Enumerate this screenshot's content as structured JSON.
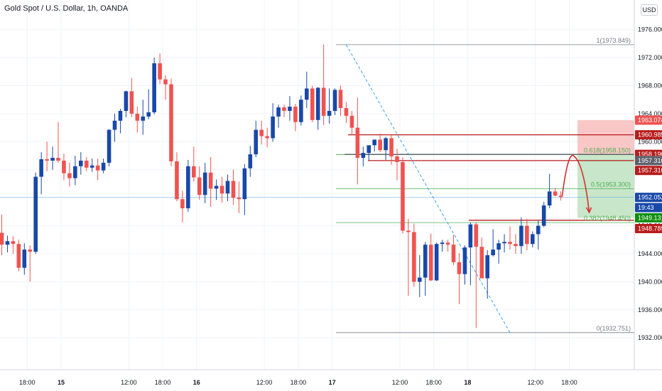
{
  "header": {
    "title": "Gold Spot / U.S. Dollar, 1h, OANDA",
    "currency": "USD"
  },
  "colors": {
    "up": "#1848a8",
    "down": "#ef5350",
    "fib_line": "#4caf50",
    "resistance": "#b71c1c",
    "grid": "#f0f3fa",
    "price_line": "#2196f3"
  },
  "chart_data": {
    "type": "candlestick",
    "ylim": [
      1930.5,
      1978
    ],
    "y_ticks": [
      "1976.000",
      "1972.000",
      "1968.000",
      "1964.000",
      "1960.000",
      "1956.000",
      "1952.000",
      "1948.000",
      "1944.000",
      "1940.000",
      "1936.000",
      "1932.000"
    ],
    "y_tick_values": [
      1976,
      1972,
      1968,
      1964,
      1960,
      1956,
      1952,
      1948,
      1944,
      1940,
      1936,
      1932
    ],
    "x_ticks": [
      {
        "label": "18:00",
        "bar": 4.5
      },
      {
        "label": "15",
        "bar": 10.5
      },
      {
        "label": "12:00",
        "bar": 22.5
      },
      {
        "label": "18:00",
        "bar": 28.5
      },
      {
        "label": "16",
        "bar": 34.5
      },
      {
        "label": "12:00",
        "bar": 46.5
      },
      {
        "label": "18:00",
        "bar": 52.5
      },
      {
        "label": "17",
        "bar": 58.5
      },
      {
        "label": "12:00",
        "bar": 70.5
      },
      {
        "label": "18:00",
        "bar": 76.5
      },
      {
        "label": "18",
        "bar": 82.5
      },
      {
        "label": "12:00",
        "bar": 94.5
      },
      {
        "label": "18:00",
        "bar": 100.5
      }
    ],
    "candles": [
      [
        1947.0,
        1949.6,
        1943.8,
        1945.3
      ],
      [
        1945.3,
        1946.6,
        1944.2,
        1945.8
      ],
      [
        1945.8,
        1946.5,
        1944.0,
        1945.4
      ],
      [
        1945.4,
        1946.0,
        1941.5,
        1942.0
      ],
      [
        1942.0,
        1945.5,
        1941.0,
        1944.6
      ],
      [
        1944.6,
        1945.2,
        1940.0,
        1944.3
      ],
      [
        1944.3,
        1955.6,
        1944.0,
        1955.0
      ],
      [
        1955.0,
        1958.5,
        1952.5,
        1957.5
      ],
      [
        1957.5,
        1960.0,
        1955.8,
        1957.3
      ],
      [
        1957.3,
        1959.3,
        1956.0,
        1957.7
      ],
      [
        1957.7,
        1962.8,
        1957.0,
        1957.3
      ],
      [
        1957.3,
        1958.3,
        1954.5,
        1955.5
      ],
      [
        1955.5,
        1957.0,
        1953.6,
        1954.8
      ],
      [
        1954.8,
        1958.0,
        1953.8,
        1956.5
      ],
      [
        1956.5,
        1958.5,
        1955.3,
        1957.3
      ],
      [
        1957.3,
        1957.8,
        1955.8,
        1956.3
      ],
      [
        1956.3,
        1957.6,
        1955.7,
        1956.6
      ],
      [
        1956.6,
        1957.6,
        1954.5,
        1955.9
      ],
      [
        1955.9,
        1957.6,
        1955.5,
        1957.0
      ],
      [
        1957.0,
        1961.8,
        1956.5,
        1961.7
      ],
      [
        1961.7,
        1964.0,
        1960.0,
        1963.0
      ],
      [
        1963.0,
        1964.7,
        1961.2,
        1964.4
      ],
      [
        1964.4,
        1967.3,
        1963.5,
        1967.2
      ],
      [
        1967.2,
        1969.1,
        1963.5,
        1964.0
      ],
      [
        1964.0,
        1965.0,
        1961.3,
        1963.0
      ],
      [
        1963.0,
        1966.0,
        1961.0,
        1963.6
      ],
      [
        1963.6,
        1967.5,
        1963.2,
        1964.2
      ],
      [
        1964.2,
        1972.0,
        1963.9,
        1971.2
      ],
      [
        1971.2,
        1972.6,
        1968.2,
        1968.9
      ],
      [
        1968.9,
        1969.5,
        1966.0,
        1968.2
      ],
      [
        1968.2,
        1969.0,
        1956.5,
        1957.2
      ],
      [
        1957.2,
        1958.5,
        1951.5,
        1951.8
      ],
      [
        1951.8,
        1953.0,
        1948.5,
        1950.5
      ],
      [
        1950.5,
        1957.4,
        1950.0,
        1956.5
      ],
      [
        1956.5,
        1959.3,
        1954.3,
        1954.9
      ],
      [
        1954.9,
        1956.5,
        1951.7,
        1952.4
      ],
      [
        1952.4,
        1957.0,
        1951.2,
        1955.6
      ],
      [
        1955.6,
        1957.8,
        1950.7,
        1953.3
      ],
      [
        1953.3,
        1954.6,
        1951.7,
        1953.7
      ],
      [
        1953.7,
        1955.0,
        1951.3,
        1952.6
      ],
      [
        1952.6,
        1955.3,
        1951.5,
        1954.4
      ],
      [
        1954.4,
        1956.0,
        1951.0,
        1952.0
      ],
      [
        1952.0,
        1954.3,
        1949.8,
        1951.8
      ],
      [
        1951.8,
        1956.8,
        1949.5,
        1956.2
      ],
      [
        1956.2,
        1959.4,
        1955.0,
        1958.2
      ],
      [
        1958.2,
        1963.0,
        1957.8,
        1961.7
      ],
      [
        1961.7,
        1963.0,
        1959.6,
        1960.8
      ],
      [
        1960.8,
        1962.0,
        1959.2,
        1960.5
      ],
      [
        1960.5,
        1965.5,
        1960.0,
        1963.6
      ],
      [
        1963.6,
        1965.3,
        1962.0,
        1964.9
      ],
      [
        1964.9,
        1965.3,
        1963.5,
        1964.4
      ],
      [
        1964.4,
        1966.5,
        1963.0,
        1965.0
      ],
      [
        1965.0,
        1965.4,
        1961.5,
        1962.8
      ],
      [
        1962.8,
        1966.6,
        1962.3,
        1966.0
      ],
      [
        1966.0,
        1970.0,
        1964.8,
        1967.6
      ],
      [
        1967.6,
        1968.0,
        1962.8,
        1963.1
      ],
      [
        1963.1,
        1967.8,
        1961.7,
        1967.7
      ],
      [
        1967.7,
        1973.9,
        1962.4,
        1963.7
      ],
      [
        1963.7,
        1967.6,
        1962.6,
        1964.4
      ],
      [
        1964.4,
        1967.6,
        1963.8,
        1967.4
      ],
      [
        1967.4,
        1968.0,
        1963.7,
        1964.8
      ],
      [
        1964.8,
        1965.7,
        1962.7,
        1963.7
      ],
      [
        1963.7,
        1964.4,
        1961.0,
        1962.0
      ],
      [
        1962.0,
        1966.3,
        1953.9,
        1957.7
      ],
      [
        1957.7,
        1959.3,
        1956.5,
        1958.4
      ],
      [
        1958.4,
        1959.3,
        1957.3,
        1959.5
      ],
      [
        1959.5,
        1960.0,
        1958.6,
        1960.3
      ],
      [
        1960.3,
        1961.2,
        1958.5,
        1958.8
      ],
      [
        1958.8,
        1960.7,
        1957.4,
        1960.5
      ],
      [
        1960.5,
        1961.0,
        1956.7,
        1957.9
      ],
      [
        1957.9,
        1959.0,
        1954.5,
        1957.1
      ],
      [
        1957.1,
        1957.8,
        1946.9,
        1947.3
      ],
      [
        1947.3,
        1949.0,
        1938.0,
        1947.1
      ],
      [
        1947.1,
        1948.3,
        1939.3,
        1940.0
      ],
      [
        1940.0,
        1943.8,
        1937.8,
        1940.6
      ],
      [
        1940.6,
        1945.7,
        1938.0,
        1945.3
      ],
      [
        1945.3,
        1946.9,
        1940.1,
        1940.2
      ],
      [
        1940.2,
        1945.6,
        1940.1,
        1945.4
      ],
      [
        1945.4,
        1946.0,
        1944.3,
        1945.6
      ],
      [
        1945.6,
        1946.0,
        1944.3,
        1945.3
      ],
      [
        1945.3,
        1946.7,
        1942.4,
        1942.8
      ],
      [
        1942.8,
        1944.1,
        1936.8,
        1941.1
      ],
      [
        1941.1,
        1945.2,
        1939.6,
        1944.9
      ],
      [
        1944.9,
        1948.5,
        1939.5,
        1948.2
      ],
      [
        1948.2,
        1948.5,
        1933.4,
        1945.0
      ],
      [
        1945.0,
        1946.3,
        1940.5,
        1940.5
      ],
      [
        1940.5,
        1944.5,
        1937.6,
        1943.8
      ],
      [
        1943.8,
        1947.5,
        1943.6,
        1944.6
      ],
      [
        1944.6,
        1946.0,
        1942.6,
        1945.5
      ],
      [
        1945.5,
        1946.8,
        1944.2,
        1945.7
      ],
      [
        1945.7,
        1947.9,
        1944.6,
        1945.4
      ],
      [
        1945.4,
        1946.8,
        1944.0,
        1945.1
      ],
      [
        1945.1,
        1949.2,
        1944.0,
        1948.0
      ],
      [
        1948.0,
        1949.0,
        1944.5,
        1945.4
      ],
      [
        1945.4,
        1947.2,
        1944.9,
        1946.8
      ],
      [
        1946.8,
        1948.7,
        1944.6,
        1948.0
      ],
      [
        1948.0,
        1951.4,
        1947.8,
        1950.9
      ],
      [
        1950.9,
        1955.4,
        1950.5,
        1952.9
      ],
      [
        1952.9,
        1953.4,
        1952.2,
        1952.3
      ],
      [
        1952.3,
        1952.9,
        1951.6,
        1952.1
      ]
    ],
    "fib_levels": [
      {
        "label": "1(1973.849)",
        "price": 1973.849,
        "color": "#787b86"
      },
      {
        "label": "0.618(1958.150)",
        "price": 1958.15,
        "color": "#4caf50"
      },
      {
        "label": "0.5(1953.300)",
        "price": 1953.3,
        "color": "#4caf50"
      },
      {
        "label": "0.382(1948.450)",
        "price": 1948.45,
        "color": "#4caf50"
      },
      {
        "label": "0(1932.751)",
        "price": 1932.751,
        "color": "#787b86"
      }
    ],
    "price_badges": [
      {
        "text": "1963.074",
        "price": 1963.074,
        "bg": "#ef5350"
      },
      {
        "text": "1960.985",
        "price": 1960.985,
        "bg": "#b71c1c"
      },
      {
        "text": "1958.190",
        "price": 1958.19,
        "bg": "#b71c1c"
      },
      {
        "text": "1957.310",
        "price": 1957.31,
        "bg": "#5d606b"
      },
      {
        "text": "1957.310",
        "price": 1955.9,
        "bg": "#b71c1c"
      },
      {
        "text": "1952.052",
        "price": 1952.052,
        "bg": "#1848a8"
      },
      {
        "text": "19:43",
        "price": 1950.6,
        "bg": "#1848a8"
      },
      {
        "text": "1949.131",
        "price": 1949.131,
        "bg": "#0b8f0b"
      },
      {
        "text": "1948.789",
        "price": 1947.6,
        "bg": "#b71c1c"
      }
    ],
    "current_price": 1952.052,
    "stop_zone": {
      "top": 1963.074,
      "bottom": 1958.19
    },
    "target_zone": {
      "top": 1958.19,
      "bottom": 1949.131
    },
    "resistance_lines": [
      1960.985,
      1958.19,
      1957.31,
      1948.789
    ],
    "trend_start": {
      "bar": 61,
      "price": 1973.849
    },
    "trend_end": {
      "bar": 90,
      "price": 1932.751
    }
  }
}
